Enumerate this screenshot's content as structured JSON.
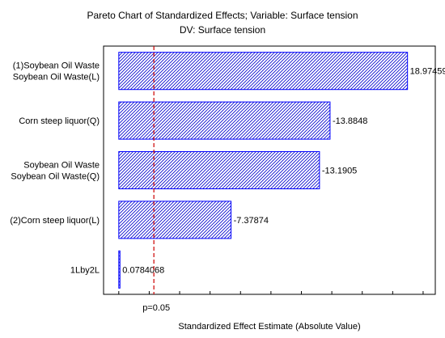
{
  "chart_data": {
    "type": "bar",
    "orientation": "horizontal",
    "title": "Pareto Chart of Standardized Effects; Variable: Surface tension",
    "subtitle": "DV: Surface tension",
    "xlabel": "Standardized Effect Estimate (Absolute Value)",
    "ylabel": "",
    "categories": [
      [
        "(1)Soybean Oil Waste",
        "Soybean Oil Waste(L)"
      ],
      [
        "Corn steep liquor(Q)"
      ],
      [
        "Soybean Oil Waste",
        "Soybean Oil Waste(Q)"
      ],
      [
        "(2)Corn steep liquor(L)"
      ],
      [
        "1Lby2L"
      ]
    ],
    "values": [
      18.97459,
      13.8848,
      13.1905,
      7.37874,
      0.0784068
    ],
    "value_labels": [
      "18.97459",
      "-13.8848",
      "-13.1905",
      "-7.37874",
      "0.0784068"
    ],
    "xlim": [
      -1.0,
      20.8
    ],
    "reference_line": {
      "value": 2.306,
      "label": "p=0.05"
    },
    "bar_fill": "#ffffff",
    "bar_stroke": "#0000ff",
    "hatch_color": "#0000cc",
    "reference_line_color": "#cc0000",
    "grid": false
  }
}
